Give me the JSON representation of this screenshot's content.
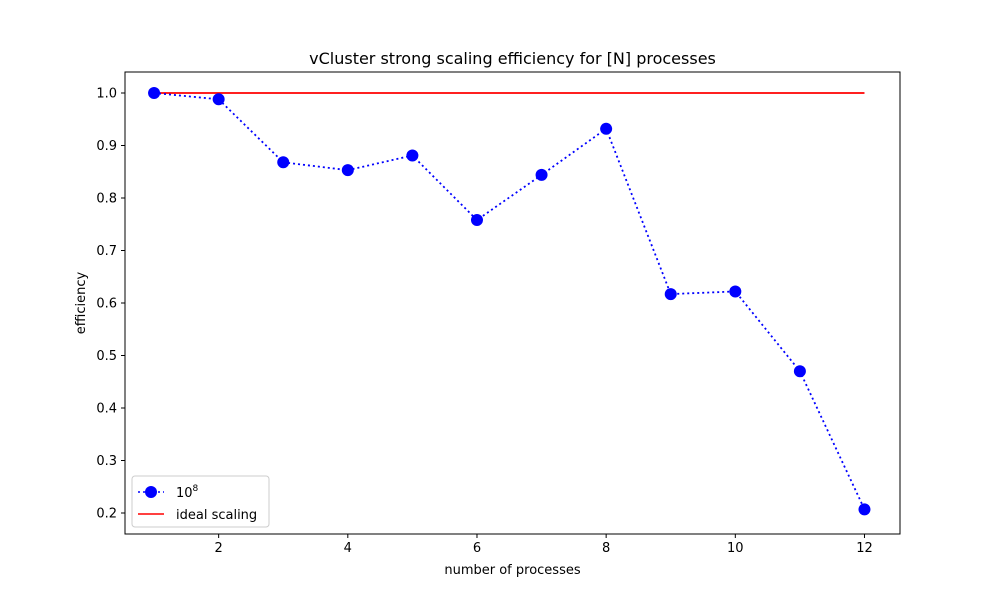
{
  "chart_data": {
    "type": "line",
    "title": "vCluster strong scaling efficiency for [N] processes",
    "xlabel": "number of processes",
    "ylabel": "efficiency",
    "xlim": [
      0.55,
      12.55
    ],
    "ylim": [
      0.16,
      1.04
    ],
    "x_ticks": [
      2,
      4,
      6,
      8,
      10,
      12
    ],
    "y_ticks": [
      0.2,
      0.3,
      0.4,
      0.5,
      0.6,
      0.7,
      0.8,
      0.9,
      1.0
    ],
    "x_tick_labels": [
      "2",
      "4",
      "6",
      "8",
      "10",
      "12"
    ],
    "y_tick_labels": [
      "0.2",
      "0.3",
      "0.4",
      "0.5",
      "0.6",
      "0.7",
      "0.8",
      "0.9",
      "1.0"
    ],
    "grid": false,
    "legend_position": "lower-left",
    "series": [
      {
        "name_base": "10",
        "name_exponent": "8",
        "style": "dotted-line-with-circle-markers",
        "color": "#0000ff",
        "x": [
          1,
          2,
          3,
          4,
          5,
          6,
          7,
          8,
          9,
          10,
          11,
          12
        ],
        "y": [
          1.0,
          0.988,
          0.868,
          0.853,
          0.881,
          0.758,
          0.844,
          0.932,
          0.617,
          0.622,
          0.47,
          0.207
        ]
      },
      {
        "name": "ideal scaling",
        "style": "solid-line",
        "color": "#ff0000",
        "x": [
          1,
          12
        ],
        "y": [
          1.0,
          1.0
        ]
      }
    ]
  }
}
